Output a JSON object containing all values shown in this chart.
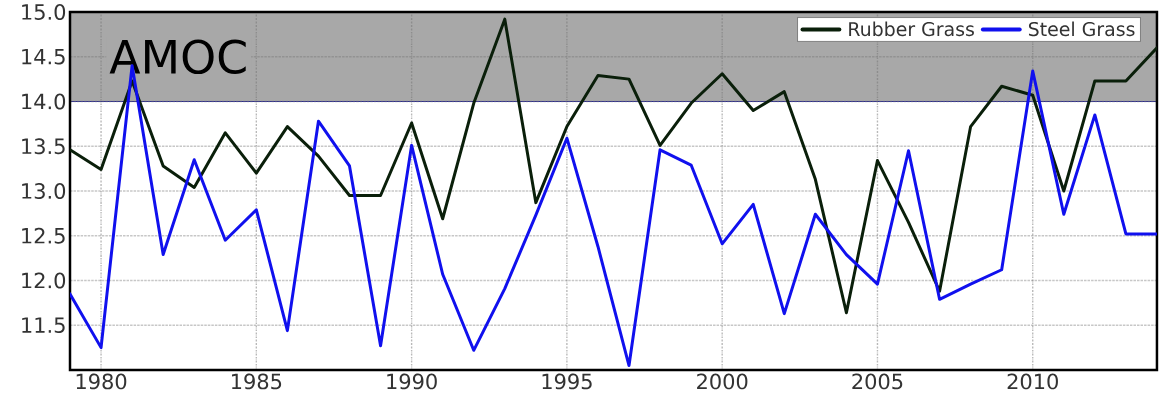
{
  "chart_data": {
    "type": "line",
    "x": [
      1979,
      1980,
      1981,
      1982,
      1983,
      1984,
      1985,
      1986,
      1987,
      1988,
      1989,
      1990,
      1991,
      1992,
      1993,
      1994,
      1995,
      1996,
      1997,
      1998,
      1999,
      2000,
      2001,
      2002,
      2003,
      2004,
      2005,
      2006,
      2007,
      2008,
      2009,
      2010,
      2011,
      2012,
      2013,
      2014
    ],
    "series": [
      {
        "name": "Rubber Grass",
        "color": "#0a1f0a",
        "values": [
          13.46,
          13.24,
          14.23,
          13.28,
          13.04,
          13.65,
          13.2,
          13.72,
          13.39,
          12.95,
          12.95,
          13.76,
          12.69,
          13.98,
          14.92,
          12.87,
          13.72,
          14.29,
          14.25,
          13.51,
          13.98,
          14.31,
          13.9,
          14.11,
          13.13,
          11.64,
          13.34,
          12.65,
          11.88,
          13.72,
          14.17,
          14.07,
          13.0,
          14.23,
          14.23,
          14.6
        ]
      },
      {
        "name": "Steel Grass",
        "color": "#1010ee",
        "values": [
          11.85,
          11.25,
          14.4,
          12.29,
          13.35,
          12.45,
          12.79,
          11.44,
          13.78,
          13.28,
          11.27,
          13.51,
          12.07,
          11.22,
          11.91,
          12.73,
          13.59,
          12.38,
          11.05,
          13.46,
          13.29,
          12.41,
          12.85,
          11.63,
          12.74,
          12.29,
          11.96,
          13.45,
          11.79,
          11.96,
          12.12,
          14.34,
          12.74,
          13.85,
          12.52,
          12.52
        ]
      }
    ],
    "xlim": [
      1979,
      2014
    ],
    "ylim": [
      11,
      15
    ],
    "xticks": [
      1980,
      1985,
      1990,
      1995,
      2000,
      2005,
      2010
    ],
    "yticks": [
      11.5,
      {
        "value": 12,
        "label": "12.0"
      },
      12.5,
      {
        "value": 13,
        "label": "13.0"
      },
      13.5,
      {
        "value": 14,
        "label": "14.0"
      },
      14.5,
      {
        "value": 15,
        "label": "15.0"
      }
    ],
    "bands": [
      {
        "axis": "y",
        "from": 14,
        "to": 15,
        "label": "AMOC",
        "color": "#a8a8a8"
      }
    ],
    "grid": true,
    "legend": "top right",
    "marker": "none",
    "line_style": "solid"
  }
}
